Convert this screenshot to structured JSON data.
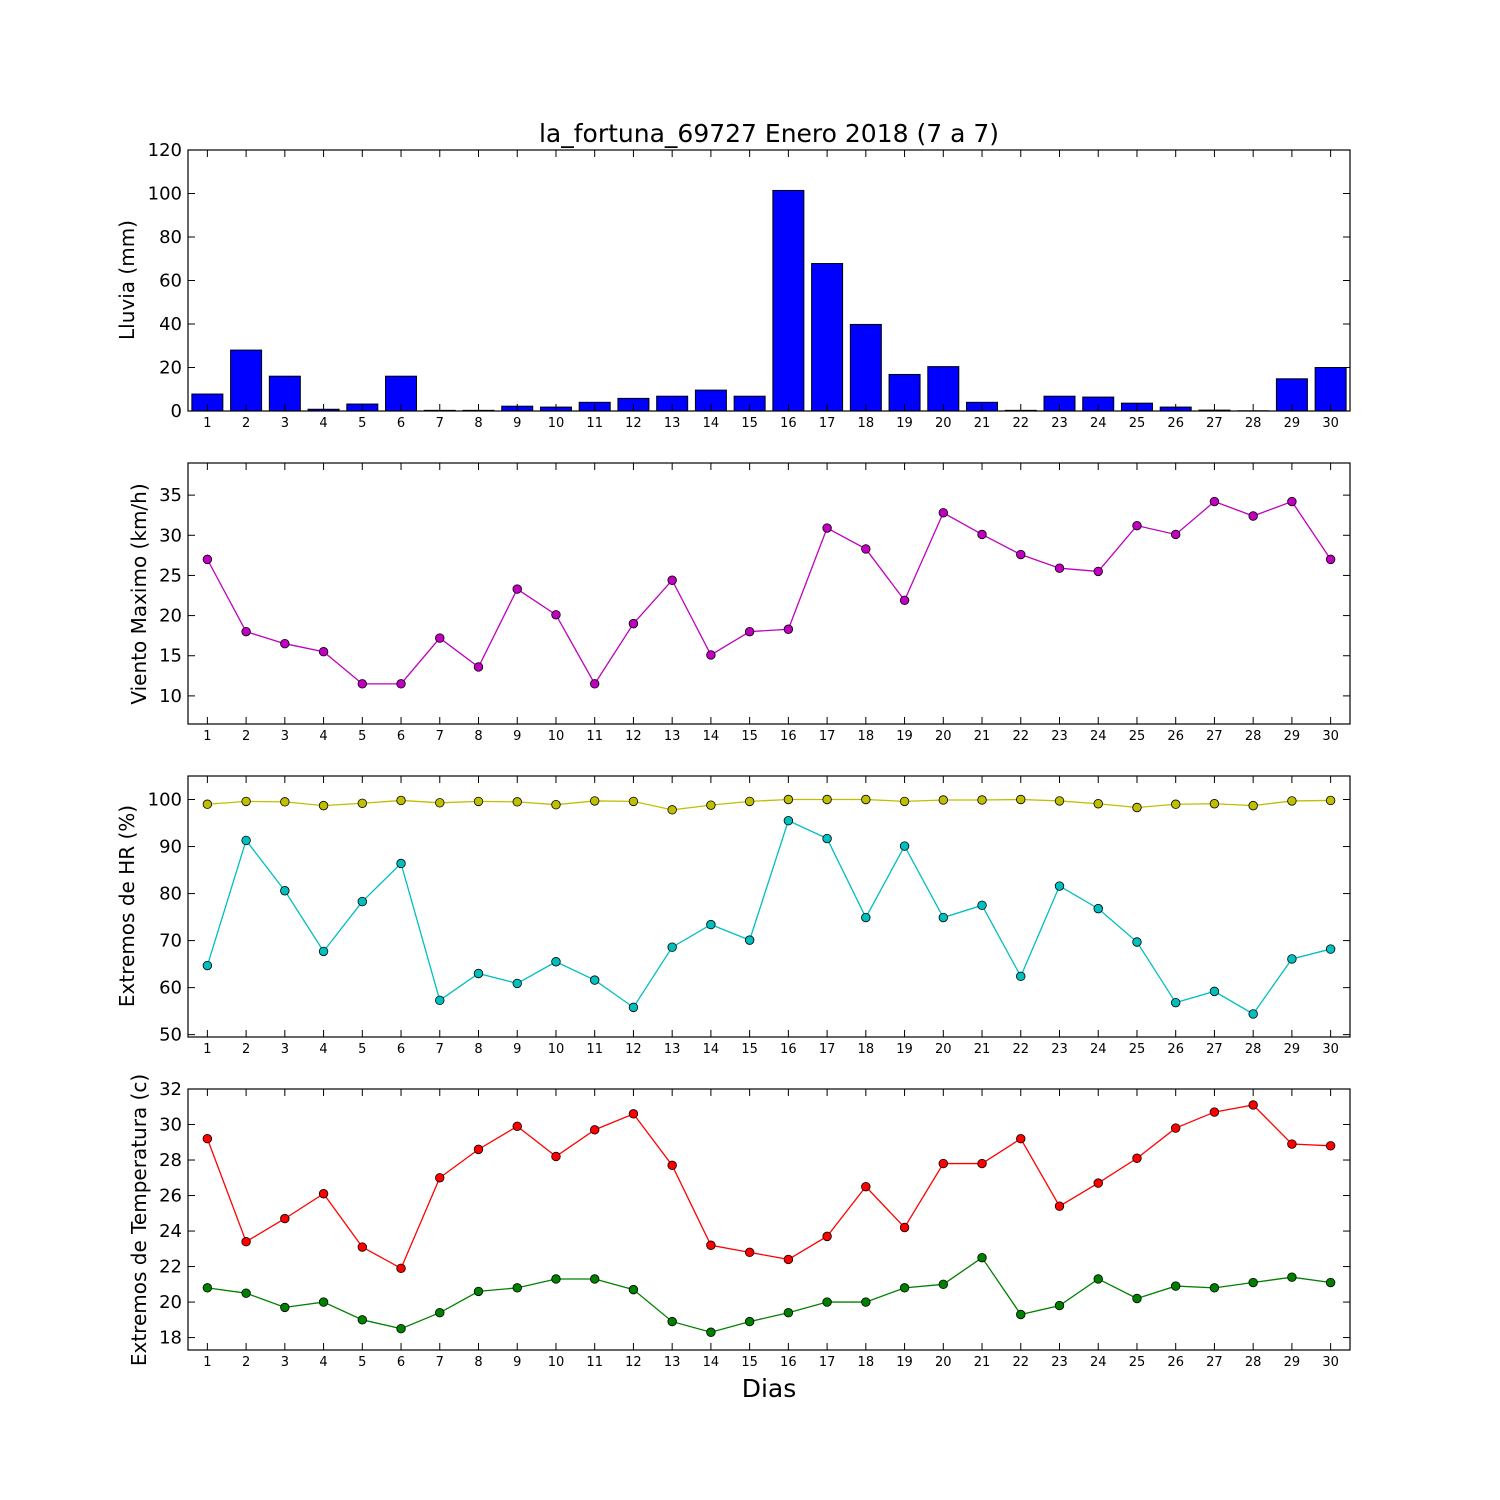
{
  "chart_data": [
    {
      "type": "bar",
      "title": "la_fortuna_69727 Enero 2018  (7 a 7)",
      "ylabel": "Lluvia (mm)",
      "xlabel": "",
      "categories": [
        "1",
        "2",
        "3",
        "4",
        "5",
        "6",
        "7",
        "8",
        "9",
        "10",
        "11",
        "12",
        "13",
        "14",
        "15",
        "16",
        "17",
        "18",
        "19",
        "20",
        "21",
        "22",
        "23",
        "24",
        "25",
        "26",
        "27",
        "28",
        "29",
        "30"
      ],
      "values": [
        7.8,
        28.0,
        16.0,
        0.8,
        3.2,
        16.0,
        0.3,
        0.3,
        2.2,
        1.8,
        4.0,
        5.8,
        6.8,
        9.6,
        6.8,
        101.4,
        67.8,
        39.8,
        16.8,
        20.4,
        4.0,
        0.3,
        6.8,
        6.4,
        3.6,
        1.8,
        0.4,
        0.1,
        14.8,
        20.0
      ],
      "ylim": [
        0,
        120
      ],
      "yticks": [
        0,
        20,
        40,
        60,
        80,
        100,
        120
      ],
      "color": "#0000ff",
      "grid": false
    },
    {
      "type": "line",
      "ylabel": "Viento Maximo (km/h)",
      "xlabel": "",
      "x": [
        1,
        2,
        3,
        4,
        5,
        6,
        7,
        8,
        9,
        10,
        11,
        12,
        13,
        14,
        15,
        16,
        17,
        18,
        19,
        20,
        21,
        22,
        23,
        24,
        25,
        26,
        27,
        28,
        29,
        30
      ],
      "series": [
        {
          "values": [
            27.0,
            18.0,
            16.5,
            15.5,
            11.5,
            11.5,
            17.2,
            13.6,
            23.3,
            20.1,
            11.5,
            19.0,
            24.4,
            15.1,
            18.0,
            18.3,
            30.9,
            28.3,
            21.9,
            32.8,
            30.1,
            27.6,
            25.9,
            25.5,
            31.2,
            30.1,
            34.2,
            32.4,
            34.2,
            27.0
          ],
          "color": "#bf00bf"
        }
      ],
      "ylim": [
        6.5,
        39
      ],
      "yticks": [
        10,
        15,
        20,
        25,
        30,
        35
      ],
      "grid": false
    },
    {
      "type": "line",
      "ylabel": "Extremos de HR (%)",
      "xlabel": "",
      "x": [
        1,
        2,
        3,
        4,
        5,
        6,
        7,
        8,
        9,
        10,
        11,
        12,
        13,
        14,
        15,
        16,
        17,
        18,
        19,
        20,
        21,
        22,
        23,
        24,
        25,
        26,
        27,
        28,
        29,
        30
      ],
      "series": [
        {
          "values": [
            99.0,
            99.6,
            99.5,
            98.7,
            99.2,
            99.8,
            99.3,
            99.6,
            99.5,
            98.9,
            99.7,
            99.6,
            97.8,
            98.8,
            99.6,
            100.0,
            100.0,
            100.0,
            99.6,
            99.9,
            99.9,
            100.0,
            99.7,
            99.1,
            98.3,
            99.0,
            99.1,
            98.7,
            99.7,
            99.8
          ],
          "color": "#bfbf00"
        },
        {
          "values": [
            64.7,
            91.3,
            80.6,
            67.7,
            78.3,
            86.4,
            57.3,
            63.0,
            60.9,
            65.5,
            61.6,
            55.8,
            68.6,
            73.4,
            70.1,
            95.5,
            91.7,
            74.9,
            90.1,
            74.9,
            77.5,
            62.4,
            81.6,
            76.8,
            69.7,
            56.8,
            59.2,
            54.4,
            66.1,
            68.2
          ],
          "color": "#00bfbf"
        }
      ],
      "ylim": [
        49.5,
        105
      ],
      "yticks": [
        50,
        60,
        70,
        80,
        90,
        100
      ],
      "grid": false
    },
    {
      "type": "line",
      "ylabel": "Extremos de Temperatura (c)",
      "xlabel": "Dias",
      "x": [
        1,
        2,
        3,
        4,
        5,
        6,
        7,
        8,
        9,
        10,
        11,
        12,
        13,
        14,
        15,
        16,
        17,
        18,
        19,
        20,
        21,
        22,
        23,
        24,
        25,
        26,
        27,
        28,
        29,
        30
      ],
      "series": [
        {
          "values": [
            29.2,
            23.4,
            24.7,
            26.1,
            23.1,
            21.9,
            27.0,
            28.6,
            29.9,
            28.2,
            29.7,
            30.6,
            27.7,
            23.2,
            22.8,
            22.4,
            23.7,
            26.5,
            24.2,
            27.8,
            27.8,
            29.2,
            25.4,
            26.7,
            28.1,
            29.8,
            30.7,
            31.1,
            28.9,
            28.8
          ],
          "color": "#ff0000"
        },
        {
          "values": [
            20.8,
            20.5,
            19.7,
            20.0,
            19.0,
            18.5,
            19.4,
            20.6,
            20.8,
            21.3,
            21.3,
            20.7,
            18.9,
            18.3,
            18.9,
            19.4,
            20.0,
            20.0,
            20.8,
            21.0,
            22.5,
            19.3,
            19.8,
            21.3,
            20.2,
            20.9,
            20.8,
            21.1,
            21.4,
            21.1
          ],
          "color": "#008000"
        }
      ],
      "ylim": [
        17.3,
        32
      ],
      "yticks": [
        18,
        20,
        22,
        24,
        26,
        28,
        30,
        32
      ],
      "grid": false
    }
  ]
}
